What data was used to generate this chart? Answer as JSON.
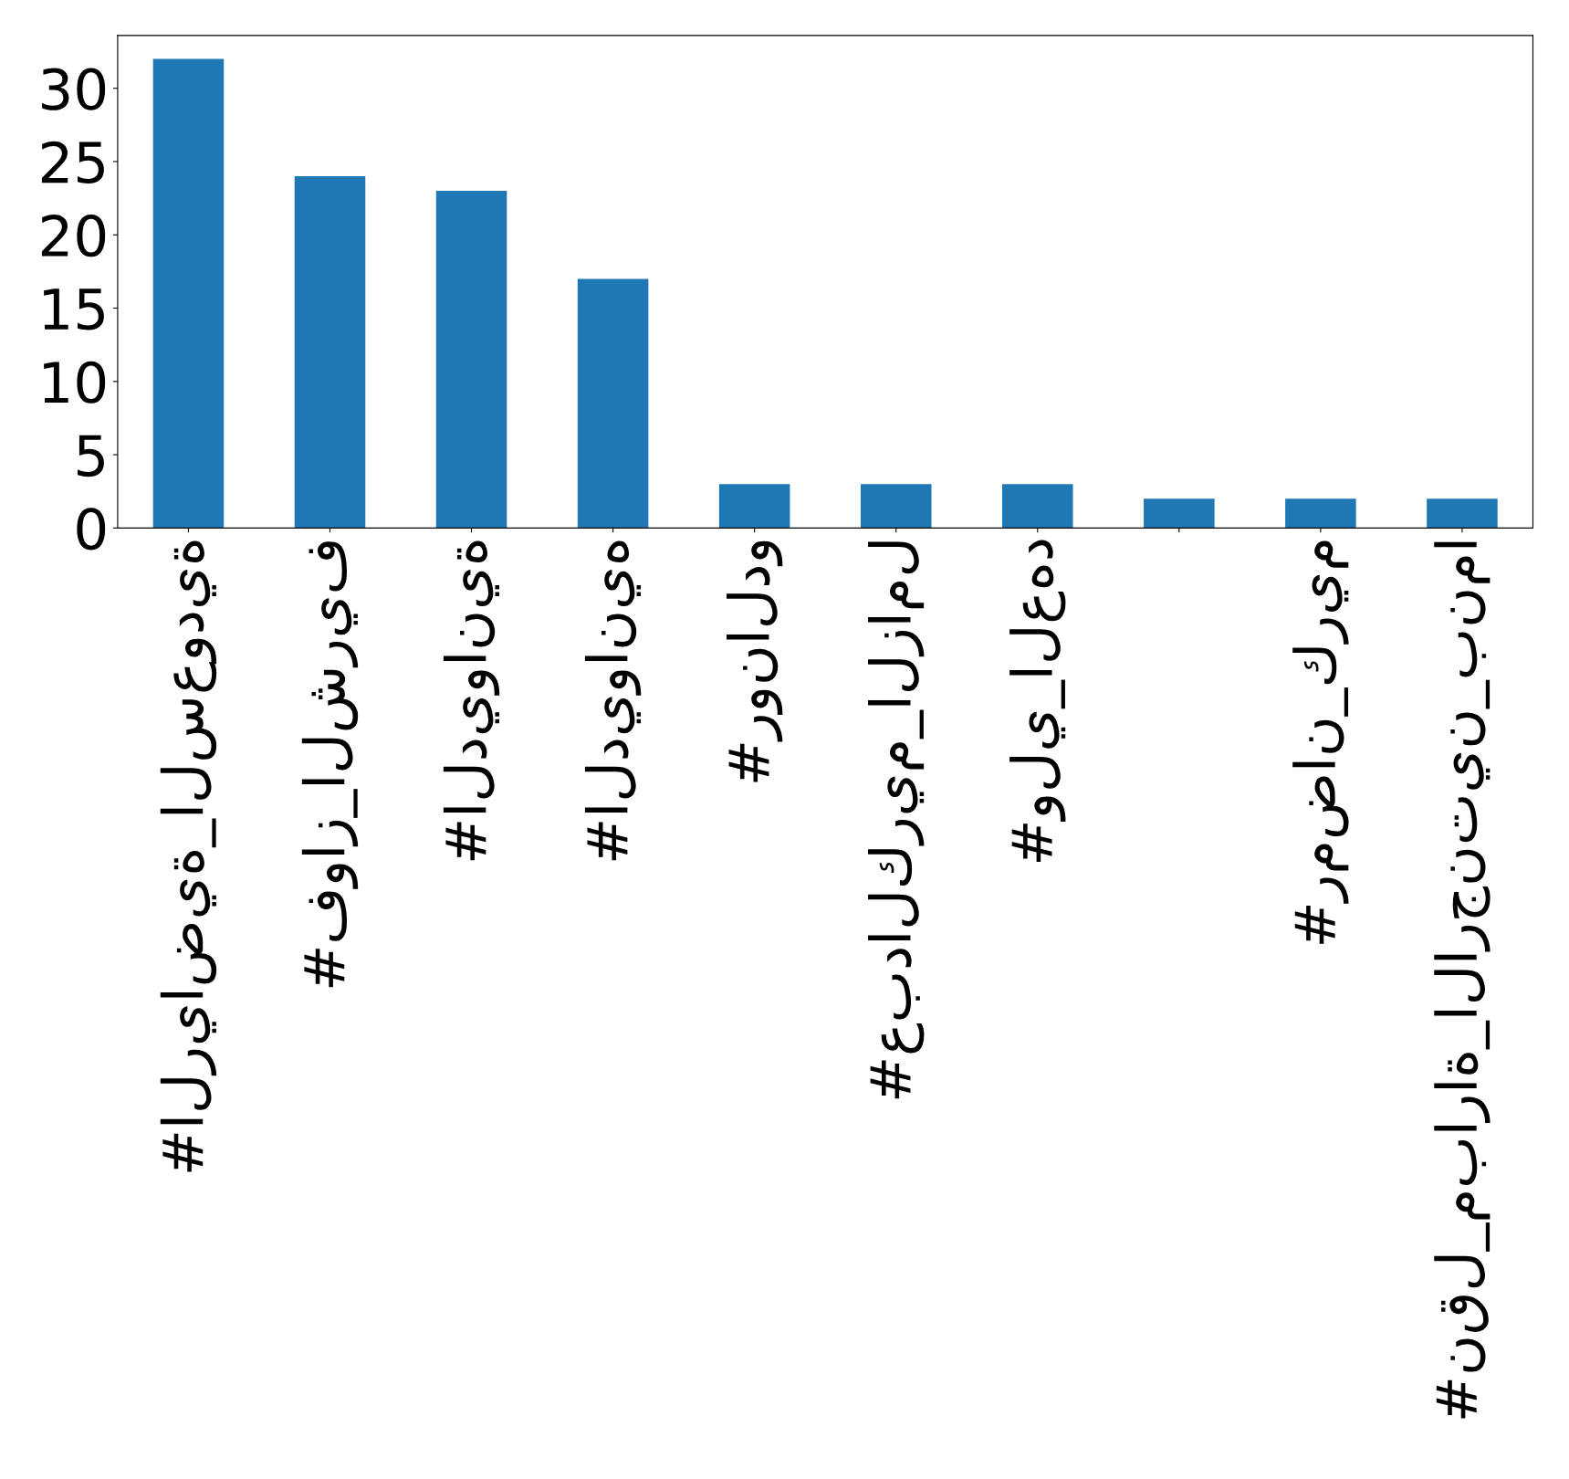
{
  "chart_data": {
    "type": "bar",
    "categories": [
      "#الرياضية_السعودية",
      "#فواز_الشريف",
      "#الديوانية",
      "#الديوانيه",
      "#رونالدو",
      "#عبدالكريم_الزامل",
      "#ولي_العهد",
      null,
      "#رمضان_كريم",
      "#نقل_مباراة_الارجنتين_بنما"
    ],
    "values": [
      32,
      24,
      23,
      17,
      3,
      3,
      3,
      2,
      2,
      2
    ],
    "color": "#1f77b4",
    "ylim": [
      0,
      33.6
    ],
    "yticks": [
      0,
      5,
      10,
      15,
      20,
      25,
      30
    ],
    "grid": false,
    "legend": false
  }
}
